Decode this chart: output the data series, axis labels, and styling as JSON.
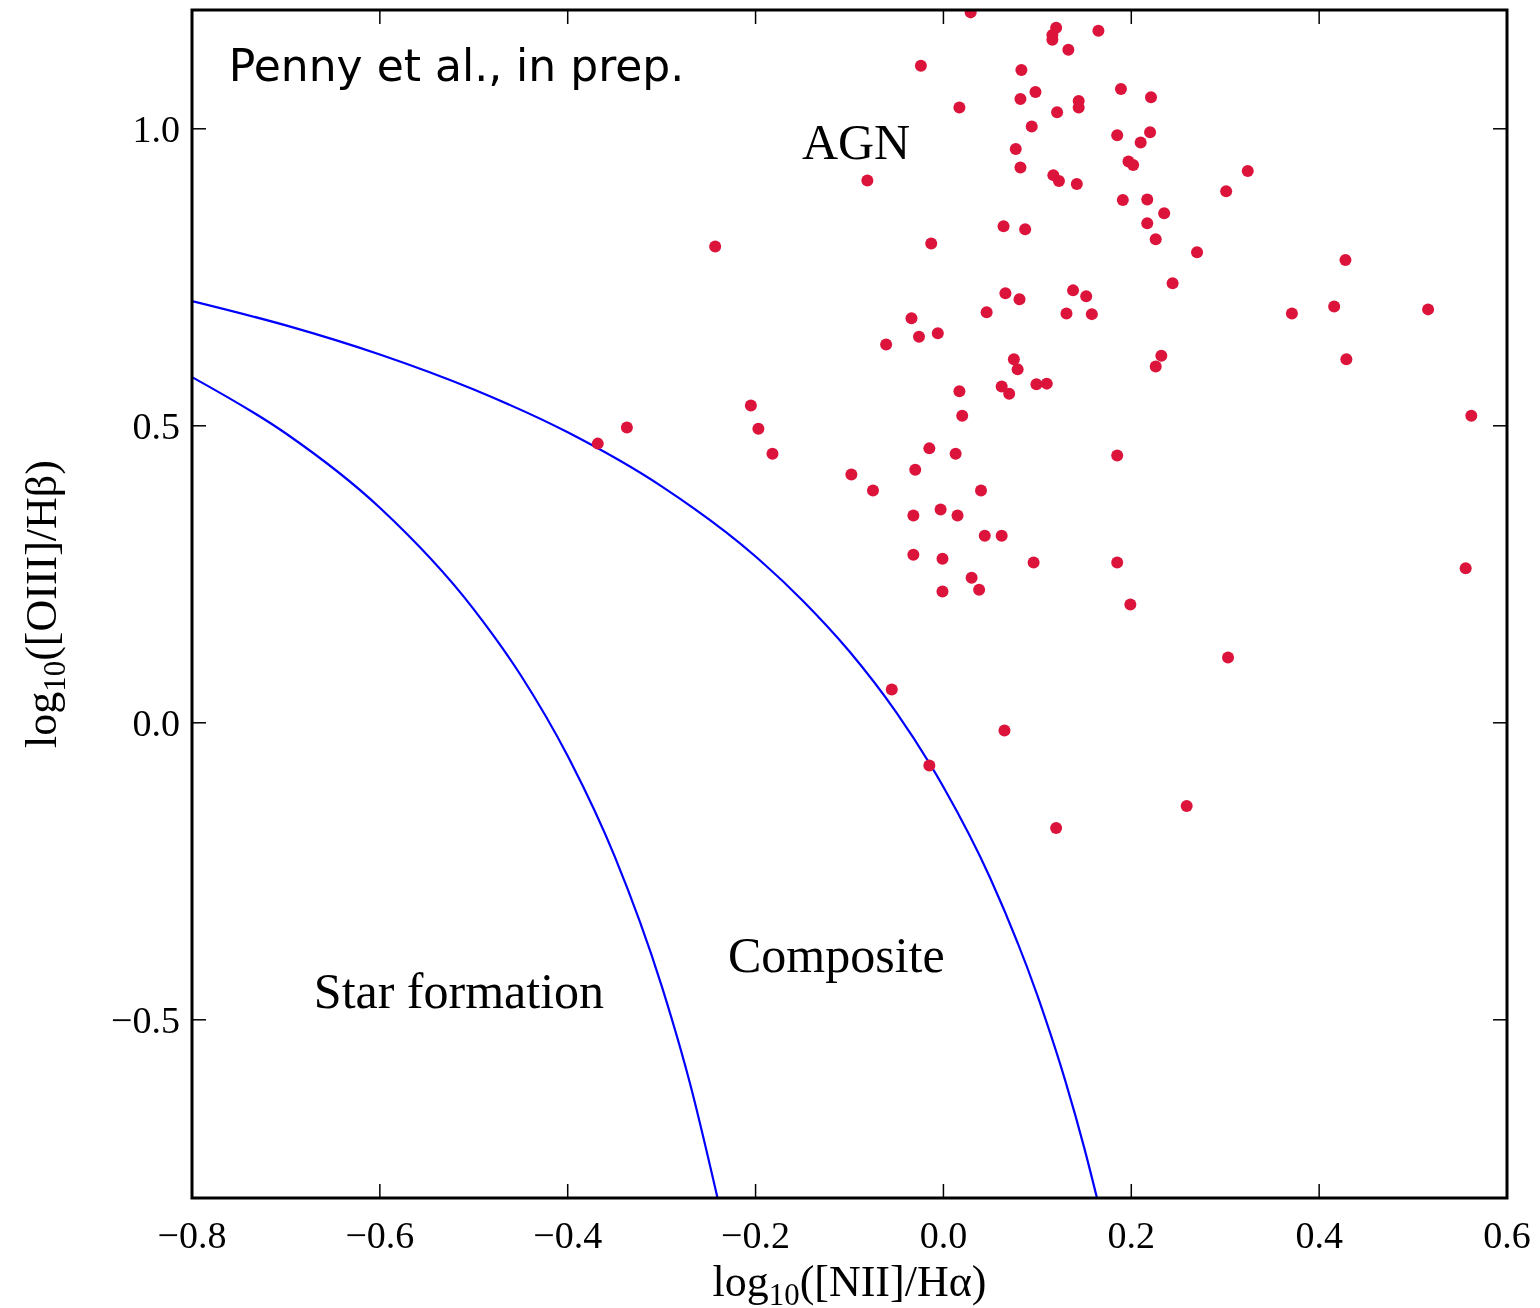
{
  "chart_data": {
    "type": "scatter",
    "xlabel": "log$_{10}$([NII]/Hα)",
    "ylabel": "log$_{10}$([OIII]/Hβ)",
    "annotations": [
      "Penny et al., in prep.",
      "AGN",
      "Composite",
      "Star formation"
    ],
    "xlim": [
      -0.8,
      0.6
    ],
    "ylim": [
      -0.8,
      1.2
    ],
    "xticks": [
      {
        "value": -0.8,
        "label": "−0.8"
      },
      {
        "value": -0.6,
        "label": "−0.6"
      },
      {
        "value": -0.4,
        "label": "−0.4"
      },
      {
        "value": -0.2,
        "label": "−0.2"
      },
      {
        "value": 0,
        "label": "0.0"
      },
      {
        "value": 0.2,
        "label": "0.2"
      },
      {
        "value": 0.4,
        "label": "0.4"
      },
      {
        "value": 0.6,
        "label": "0.6"
      }
    ],
    "yticks": [
      {
        "value": -0.5,
        "label": "−0.5"
      },
      {
        "value": 0,
        "label": "0.0"
      },
      {
        "value": 0.5,
        "label": "0.5"
      },
      {
        "value": 1,
        "label": "1.0"
      }
    ],
    "grid": false,
    "series": [
      {
        "type": "scatter",
        "marker": "circle",
        "color": "#dc143c",
        "x": [
          0.029,
          0.12,
          0.116,
          0.116,
          0.165,
          0.133,
          -0.024,
          0.083,
          0.098,
          0.189,
          0.082,
          0.221,
          0.144,
          0.144,
          0.017,
          0.121,
          0.094,
          0.185,
          0.22,
          0.21,
          0.077,
          0.197,
          0.202,
          0.082,
          0.324,
          0.117,
          0.123,
          0.142,
          -0.081,
          0.301,
          0.191,
          0.217,
          0.235,
          0.217,
          0.064,
          0.087,
          0.226,
          -0.013,
          -0.243,
          0.27,
          0.428,
          0.244,
          0.066,
          0.138,
          0.081,
          0.152,
          0.416,
          0.516,
          0.046,
          0.131,
          0.158,
          0.371,
          -0.034,
          -0.006,
          -0.026,
          -0.061,
          0.232,
          0.429,
          0.075,
          0.226,
          0.079,
          0.062,
          0.11,
          0.099,
          0.07,
          0.017,
          -0.205,
          0.02,
          0.562,
          -0.337,
          -0.197,
          -0.368,
          -0.015,
          -0.182,
          0.013,
          0.185,
          -0.03,
          -0.098,
          -0.075,
          0.04,
          -0.003,
          -0.032,
          0.015,
          0.044,
          0.062,
          -0.032,
          -0.001,
          0.096,
          0.185,
          0.556,
          0.03,
          0.038,
          -0.001,
          0.199,
          0.303,
          -0.055,
          0.065,
          -0.015,
          0.259,
          0.12
        ],
        "values": [
          1.196,
          1.17,
          1.158,
          1.15,
          1.165,
          1.133,
          1.106,
          1.099,
          1.062,
          1.067,
          1.05,
          1.053,
          1.047,
          1.036,
          1.036,
          1.028,
          1.004,
          0.989,
          0.994,
          0.977,
          0.966,
          0.945,
          0.939,
          0.935,
          0.929,
          0.922,
          0.912,
          0.907,
          0.913,
          0.895,
          0.88,
          0.881,
          0.858,
          0.841,
          0.836,
          0.831,
          0.814,
          0.807,
          0.802,
          0.792,
          0.779,
          0.74,
          0.723,
          0.728,
          0.713,
          0.718,
          0.701,
          0.696,
          0.691,
          0.689,
          0.688,
          0.689,
          0.681,
          0.656,
          0.65,
          0.637,
          0.618,
          0.612,
          0.612,
          0.6,
          0.595,
          0.566,
          0.571,
          0.57,
          0.554,
          0.558,
          0.534,
          0.517,
          0.517,
          0.497,
          0.495,
          0.47,
          0.462,
          0.453,
          0.453,
          0.45,
          0.426,
          0.418,
          0.391,
          0.391,
          0.359,
          0.349,
          0.349,
          0.315,
          0.315,
          0.283,
          0.276,
          0.27,
          0.27,
          0.26,
          0.244,
          0.224,
          0.221,
          0.199,
          0.11,
          0.056,
          -0.013,
          -0.072,
          -0.14,
          -0.177
        ]
      },
      {
        "type": "line",
        "marker": "none",
        "color": "#0000ff",
        "x": [
          -0.8,
          -0.7,
          -0.6,
          -0.5,
          -0.4,
          -0.3,
          -0.2,
          -0.15,
          -0.1,
          -0.05,
          0,
          0.05,
          0.1,
          0.13,
          0.15,
          0.1635
        ],
        "values": [
          0.71,
          0.669,
          0.62,
          0.561,
          0.489,
          0.398,
          0.28,
          0.206,
          0.12,
          0.017,
          -0.108,
          -0.262,
          -0.459,
          -0.604,
          -0.716,
          -0.8
        ]
      },
      {
        "type": "line",
        "marker": "none",
        "color": "#0000ff",
        "x": [
          -0.8,
          -0.7,
          -0.6,
          -0.5,
          -0.45,
          -0.4,
          -0.35,
          -0.3,
          -0.27,
          -0.2405
        ],
        "values": [
          0.582,
          0.487,
          0.362,
          0.191,
          0.08,
          -0.056,
          -0.225,
          -0.443,
          -0.606,
          -0.8
        ]
      }
    ]
  }
}
